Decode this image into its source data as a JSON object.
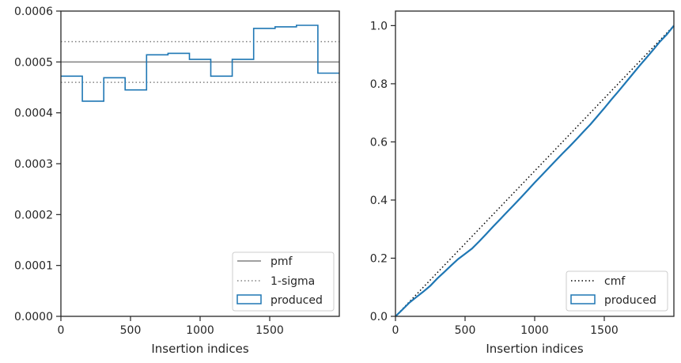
{
  "chart_data": [
    {
      "type": "line",
      "xlabel": "Insertion indices",
      "ylabel": "",
      "xlim": [
        0,
        2000
      ],
      "ylim": [
        0,
        0.0006
      ],
      "xticks": [
        0,
        500,
        1000,
        1500
      ],
      "xtick_labels": [
        "0",
        "500",
        "1000",
        "1500"
      ],
      "yticks": [
        0,
        0.0001,
        0.0002,
        0.0003,
        0.0004,
        0.0005,
        0.0006
      ],
      "ytick_labels": [
        "0.0000",
        "0.0001",
        "0.0002",
        "0.0003",
        "0.0004",
        "0.0005",
        "0.0006"
      ],
      "grid": false,
      "legend_position": "bottom-right",
      "legend": [
        {
          "label": "pmf",
          "style": "solid",
          "color": "#808080"
        },
        {
          "label": "1-sigma",
          "style": "dotted",
          "color": "#808080"
        },
        {
          "label": "produced",
          "style": "step",
          "color": "#1f77b4"
        }
      ],
      "pmf": 0.0005,
      "sigma_bounds": [
        0.00046,
        0.00054
      ],
      "histogram": {
        "name": "produced",
        "bin_edges": [
          0,
          153.8,
          307.7,
          461.5,
          615.4,
          769.2,
          923.1,
          1076.9,
          1230.8,
          1384.6,
          1538.5,
          1692.3,
          1846.2,
          2000
        ],
        "values": [
          0.000472,
          0.000423,
          0.000469,
          0.000445,
          0.000514,
          0.000517,
          0.000505,
          0.000472,
          0.000505,
          0.000566,
          0.000569,
          0.000572,
          0.000478
        ]
      }
    },
    {
      "type": "line",
      "xlabel": "Insertion indices",
      "ylabel": "",
      "xlim": [
        0,
        2000
      ],
      "ylim": [
        0,
        1.05
      ],
      "xticks": [
        0,
        500,
        1000,
        1500
      ],
      "xtick_labels": [
        "0",
        "500",
        "1000",
        "1500"
      ],
      "yticks": [
        0,
        0.2,
        0.4,
        0.6,
        0.8,
        1.0
      ],
      "ytick_labels": [
        "0.0",
        "0.2",
        "0.4",
        "0.6",
        "0.8",
        "1.0"
      ],
      "grid": false,
      "legend_position": "bottom-right",
      "legend": [
        {
          "label": "cmf",
          "style": "dotted",
          "color": "#000000"
        },
        {
          "label": "produced",
          "style": "step",
          "color": "#1f77b4"
        }
      ],
      "series": [
        {
          "name": "cmf",
          "x": [
            0,
            2000
          ],
          "y": [
            0,
            1
          ]
        },
        {
          "name": "produced",
          "x": [
            0,
            50,
            100,
            150,
            200,
            250,
            300,
            350,
            400,
            450,
            500,
            550,
            600,
            650,
            700,
            750,
            800,
            850,
            900,
            950,
            1000,
            1050,
            1100,
            1150,
            1200,
            1250,
            1300,
            1350,
            1400,
            1450,
            1500,
            1550,
            1600,
            1650,
            1700,
            1750,
            1800,
            1850,
            1900,
            1950,
            2000
          ],
          "y": [
            0,
            0.023,
            0.047,
            0.066,
            0.085,
            0.105,
            0.13,
            0.152,
            0.175,
            0.197,
            0.215,
            0.233,
            0.257,
            0.282,
            0.308,
            0.333,
            0.358,
            0.383,
            0.408,
            0.434,
            0.46,
            0.485,
            0.51,
            0.535,
            0.56,
            0.584,
            0.609,
            0.635,
            0.66,
            0.688,
            0.716,
            0.745,
            0.773,
            0.802,
            0.831,
            0.86,
            0.888,
            0.916,
            0.945,
            0.97,
            1.0
          ]
        }
      ]
    }
  ]
}
